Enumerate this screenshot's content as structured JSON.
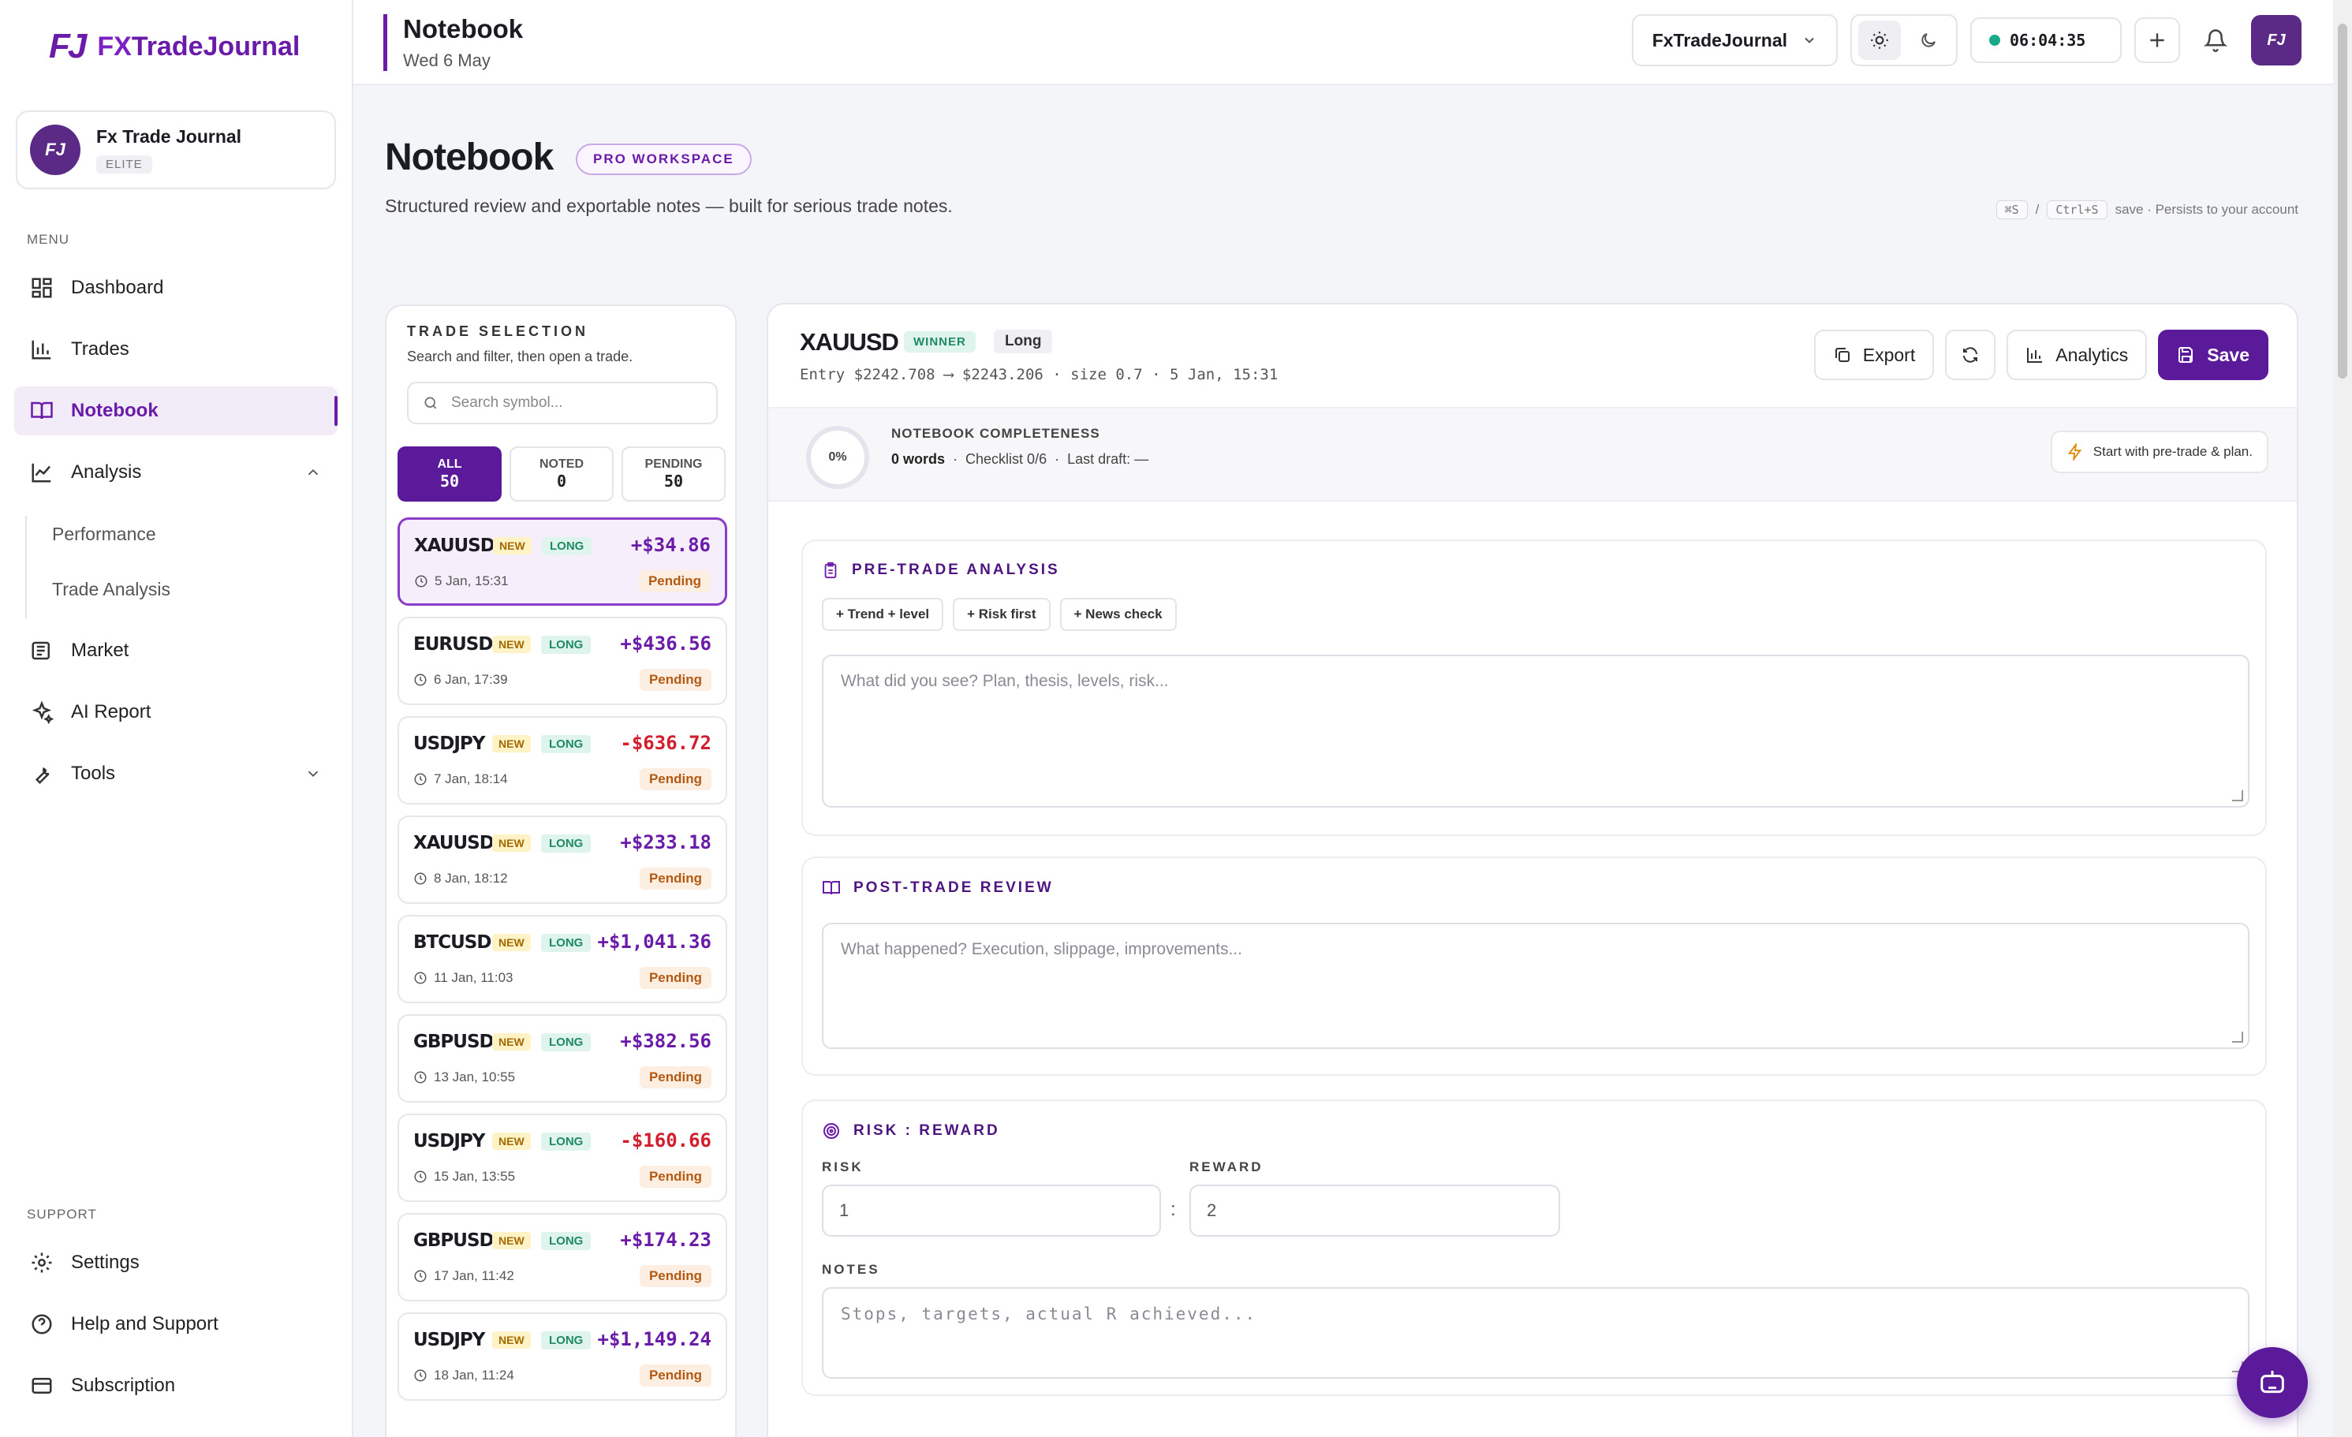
{
  "brand": {
    "mark": "FJ",
    "name_fx": "FX",
    "name_rest": "TradeJournal"
  },
  "account": {
    "initials": "FJ",
    "name": "Fx Trade Journal",
    "tier": "ELITE"
  },
  "sidebar": {
    "menu_label": "MENU",
    "items": [
      {
        "label": "Dashboard",
        "icon": "grid-icon"
      },
      {
        "label": "Trades",
        "icon": "bar-chart-icon"
      },
      {
        "label": "Notebook",
        "icon": "book-icon",
        "active": true
      },
      {
        "label": "Analysis",
        "icon": "line-chart-icon",
        "expanded": true
      },
      {
        "label": "Market",
        "icon": "newspaper-icon"
      },
      {
        "label": "AI Report",
        "icon": "sparkles-icon"
      },
      {
        "label": "Tools",
        "icon": "wrench-icon"
      }
    ],
    "analysis_sub": [
      "Performance",
      "Trade Analysis"
    ],
    "support_label": "SUPPORT",
    "support_items": [
      {
        "label": "Settings",
        "icon": "gear-icon"
      },
      {
        "label": "Help and Support",
        "icon": "help-icon"
      },
      {
        "label": "Subscription",
        "icon": "card-icon"
      }
    ]
  },
  "topbar": {
    "title": "Notebook",
    "date": "Wed 6 May",
    "workspace": "FxTradeJournal",
    "clock": "06:04:35",
    "user_initials": "FJ"
  },
  "page": {
    "title": "Notebook",
    "badge": "PRO WORKSPACE",
    "subtitle": "Structured review and exportable notes — built for serious trade notes.",
    "hint_keys": [
      "⌘S",
      "/",
      "Ctrl+S"
    ],
    "hint_text": "save · Persists to your account"
  },
  "trade_selection": {
    "title": "TRADE SELECTION",
    "subtitle": "Search and filter, then open a trade.",
    "search_placeholder": "Search symbol...",
    "filters": [
      {
        "label": "ALL",
        "count": "50"
      },
      {
        "label": "NOTED",
        "count": "0"
      },
      {
        "label": "PENDING",
        "count": "50"
      }
    ],
    "trades": [
      {
        "symbol": "XAUUSD",
        "tag": "NEW",
        "side": "LONG",
        "pnl": "+$34.86",
        "date": "5 Jan, 15:31",
        "status": "Pending"
      },
      {
        "symbol": "EURUSD",
        "tag": "NEW",
        "side": "LONG",
        "pnl": "+$436.56",
        "date": "6 Jan, 17:39",
        "status": "Pending"
      },
      {
        "symbol": "USDJPY",
        "tag": "NEW",
        "side": "LONG",
        "pnl": "-$636.72",
        "date": "7 Jan, 18:14",
        "status": "Pending"
      },
      {
        "symbol": "XAUUSD",
        "tag": "NEW",
        "side": "LONG",
        "pnl": "+$233.18",
        "date": "8 Jan, 18:12",
        "status": "Pending"
      },
      {
        "symbol": "BTCUSD",
        "tag": "NEW",
        "side": "LONG",
        "pnl": "+$1,041.36",
        "date": "11 Jan, 11:03",
        "status": "Pending"
      },
      {
        "symbol": "GBPUSD",
        "tag": "NEW",
        "side": "LONG",
        "pnl": "+$382.56",
        "date": "13 Jan, 10:55",
        "status": "Pending"
      },
      {
        "symbol": "USDJPY",
        "tag": "NEW",
        "side": "LONG",
        "pnl": "-$160.66",
        "date": "15 Jan, 13:55",
        "status": "Pending"
      },
      {
        "symbol": "GBPUSD",
        "tag": "NEW",
        "side": "LONG",
        "pnl": "+$174.23",
        "date": "17 Jan, 11:42",
        "status": "Pending"
      },
      {
        "symbol": "USDJPY",
        "tag": "NEW",
        "side": "LONG",
        "pnl": "+$1,149.24",
        "date": "18 Jan, 11:24",
        "status": "Pending"
      }
    ]
  },
  "detail": {
    "symbol": "XAUUSD",
    "result": "WINNER",
    "side": "Long",
    "entry": "Entry $2242.708 ⟶ $2243.206 · size 0.7 · 5 Jan, 15:31",
    "buttons": {
      "export": "Export",
      "analytics": "Analytics",
      "save": "Save"
    },
    "completeness": {
      "percent": "0%",
      "label": "NOTEBOOK COMPLETENESS",
      "words": "0 words",
      "checklist": "Checklist 0/6",
      "last_draft": "Last draft: —",
      "cta": "Start with pre-trade & plan."
    },
    "pretrade": {
      "title": "PRE-TRADE ANALYSIS",
      "chips": [
        "+ Trend + level",
        "+ Risk first",
        "+ News check"
      ],
      "placeholder": "What did you see? Plan, thesis, levels, risk..."
    },
    "posttrade": {
      "title": "POST-TRADE REVIEW",
      "placeholder": "What happened? Execution, slippage, improvements..."
    },
    "risk_reward": {
      "title": "RISK : REWARD",
      "risk_label": "RISK",
      "reward_label": "REWARD",
      "risk": "1",
      "reward": "2",
      "separator": ":",
      "notes_label": "NOTES",
      "notes_placeholder": "Stops, targets, actual R achieved..."
    }
  },
  "colors": {
    "accent": "#6a1ba8",
    "positive": "#6a1ba8",
    "negative": "#d21d2c",
    "status_online": "#17a98a"
  }
}
